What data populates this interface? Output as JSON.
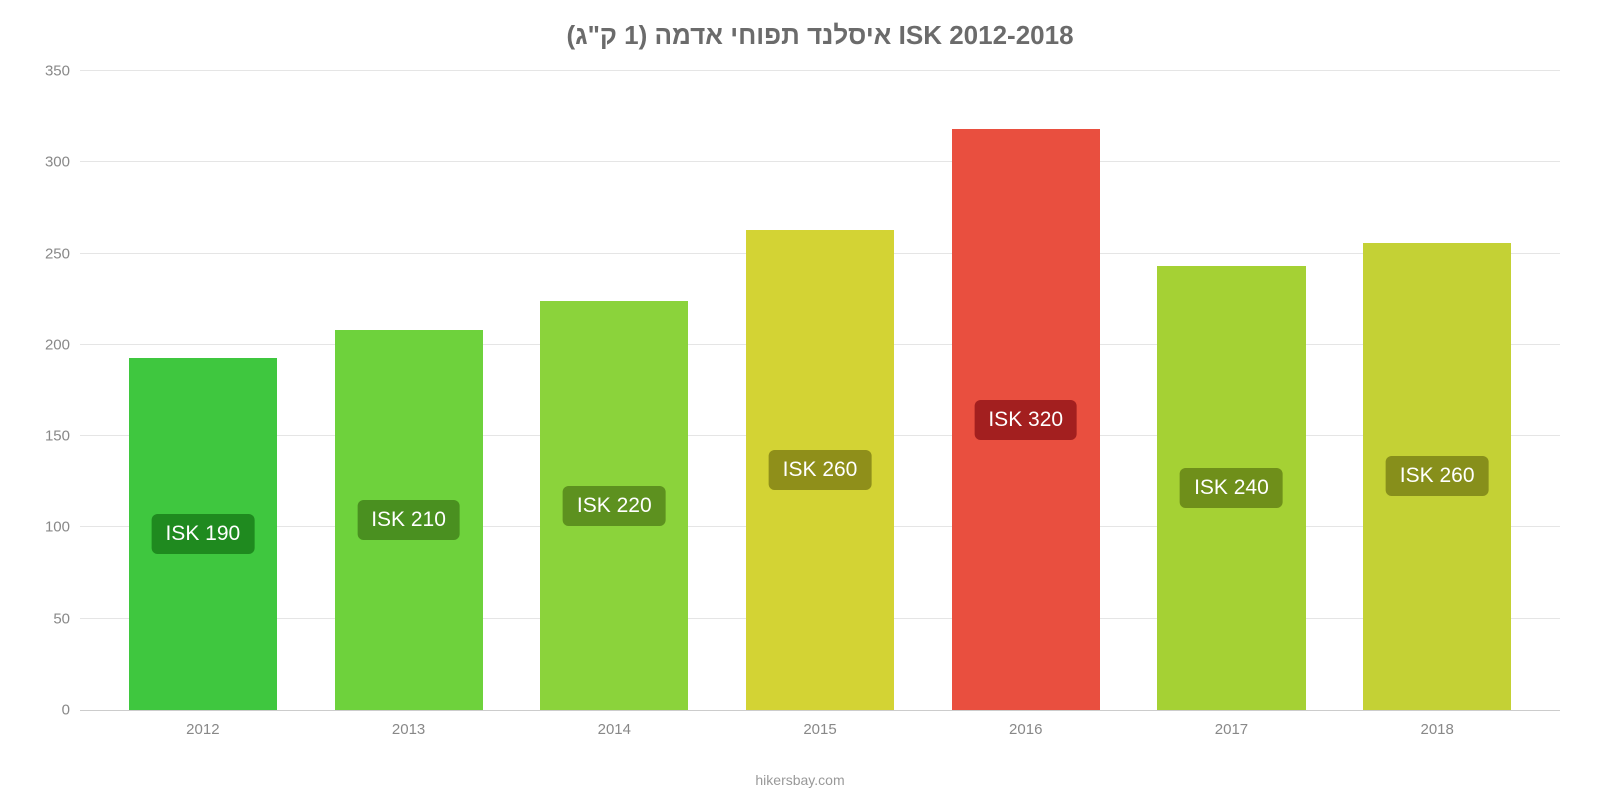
{
  "chart": {
    "type": "bar",
    "title": "איסלנד תפוחי אדמה (1 ק\"ג) ISK 2012-2018",
    "title_color": "#6b6b6b",
    "title_fontsize": 26,
    "background_color": "#ffffff",
    "grid_color": "#e5e5e5",
    "axis_line_color": "#cccccc",
    "ylim": [
      0,
      350
    ],
    "ytick_step": 50,
    "yticks": [
      0,
      50,
      100,
      150,
      200,
      250,
      300,
      350
    ],
    "ytick_fontsize": 15,
    "ytick_color": "#888888",
    "xtick_fontsize": 15,
    "xtick_color": "#888888",
    "bar_width": 0.72,
    "label_fontsize": 21,
    "label_text_color": "#ffffff",
    "label_border_radius": 6,
    "categories": [
      "2012",
      "2013",
      "2014",
      "2015",
      "2016",
      "2017",
      "2018"
    ],
    "values": [
      193,
      208,
      224,
      263,
      318,
      243,
      256
    ],
    "bar_colors": [
      "#3fc73f",
      "#6ed23c",
      "#8bd33b",
      "#d3d334",
      "#e94f3f",
      "#a5d134",
      "#c4d135"
    ],
    "data_labels": [
      "ISK 190",
      "ISK 210",
      "ISK 220",
      "ISK 260",
      "ISK 320",
      "ISK 240",
      "ISK 260"
    ],
    "label_bg_colors": [
      "#1f8a1f",
      "#4a9020",
      "#5d911f",
      "#8f8f1a",
      "#a31f1f",
      "#6f8f1a",
      "#878f1b"
    ],
    "attribution": "hikersbay.com",
    "attribution_color": "#999999",
    "attribution_fontsize": 14
  }
}
